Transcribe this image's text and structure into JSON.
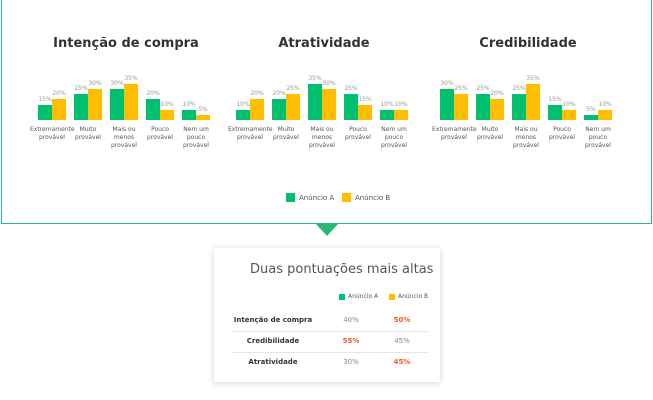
{
  "chart_data": [
    {
      "type": "bar",
      "title": "Intenção de compra",
      "categories": [
        "Extremamente provável",
        "Muito provável",
        "Mais ou menos provável",
        "Pouco provável",
        "Nem um pouco provável"
      ],
      "series": [
        {
          "values": [
            15,
            25,
            30,
            20,
            10
          ],
          "value_labels": [
            "15%",
            "25%",
            "30%",
            "20%",
            "10%"
          ]
        },
        {
          "values": [
            20,
            30,
            35,
            10,
            5
          ],
          "value_labels": [
            "20%",
            "30%",
            "35%",
            "10%",
            "5%"
          ]
        }
      ]
    },
    {
      "type": "bar",
      "title": "Atratividade",
      "categories": [
        "Extremamente provável",
        "Muito provável",
        "Mais ou menos provável",
        "Pouco provável",
        "Nem um pouco provável"
      ],
      "series": [
        {
          "values": [
            10,
            20,
            35,
            25,
            10
          ],
          "value_labels": [
            "10%",
            "20%",
            "35%",
            "25%",
            "10%"
          ]
        },
        {
          "values": [
            20,
            25,
            30,
            15,
            10
          ],
          "value_labels": [
            "20%",
            "25%",
            "30%",
            "15%",
            "10%"
          ]
        }
      ]
    },
    {
      "type": "bar",
      "title": "Credibilidade",
      "categories": [
        "Extremamente provável",
        "Muito provável",
        "Mais ou menos provável",
        "Pouco provável",
        "Nem um pouco provável"
      ],
      "series": [
        {
          "values": [
            30,
            25,
            25,
            15,
            5
          ],
          "value_labels": [
            "30%",
            "25%",
            "25%",
            "15%",
            "5%"
          ]
        },
        {
          "values": [
            25,
            20,
            35,
            10,
            10
          ],
          "value_labels": [
            "25%",
            "20%",
            "35%",
            "10%",
            "10%"
          ]
        }
      ]
    }
  ],
  "legend": [
    {
      "name": "Anúncio A",
      "color": "#00bf6f"
    },
    {
      "name": "Anúncio B",
      "color": "#ffbf00"
    }
  ],
  "summary": {
    "title": "Duas pontuações mais altas",
    "rows": [
      [
        "Intenção de compra",
        "40%",
        "50%"
      ],
      [
        "Credibilidade",
        "55%",
        "45%"
      ],
      [
        "Atratividade",
        "30%",
        "45%"
      ]
    ],
    "highlight_column": [
      2,
      1,
      2
    ]
  }
}
